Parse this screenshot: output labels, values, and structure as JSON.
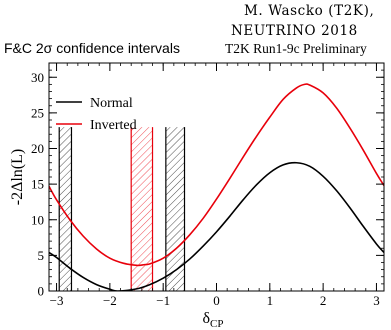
{
  "credit_line1": "M. Wascko (T2K),",
  "credit_line2": "NEUTRINO 2018",
  "chart_data": {
    "type": "line",
    "title": "F&C 2σ confidence intervals",
    "subtitle": "T2K Run1-9c Preliminary",
    "xlabel": "δ",
    "xlabel_sub": "CP",
    "ylabel": "-2Δln(L)",
    "xlim": [
      -3.14159,
      3.14159
    ],
    "ylim": [
      0,
      32
    ],
    "xticks": [
      -3,
      -2,
      -1,
      0,
      1,
      2,
      3
    ],
    "yticks": [
      0,
      5,
      10,
      15,
      20,
      25,
      30
    ],
    "grid": false,
    "legend_position": "top-left",
    "series": [
      {
        "name": "Normal",
        "color": "#000000",
        "x": [
          -3.14159,
          -3.0,
          -2.75,
          -2.5,
          -2.25,
          -2.0,
          -1.85,
          -1.5,
          -1.25,
          -1.0,
          -0.75,
          -0.5,
          -0.25,
          0.0,
          0.25,
          0.5,
          0.75,
          1.0,
          1.25,
          1.5,
          1.75,
          2.0,
          2.25,
          2.5,
          2.75,
          3.0,
          3.14159
        ],
        "y": [
          5.4,
          4.7,
          3.2,
          1.9,
          0.9,
          0.25,
          0.0,
          0.3,
          0.9,
          1.8,
          3.0,
          4.5,
          6.3,
          8.3,
          10.5,
          12.8,
          14.9,
          16.6,
          17.7,
          18.0,
          17.5,
          16.1,
          14.1,
          11.7,
          9.1,
          6.6,
          5.4
        ]
      },
      {
        "name": "Inverted",
        "color": "#e8000b",
        "x": [
          -3.14159,
          -3.0,
          -2.75,
          -2.5,
          -2.25,
          -2.0,
          -1.75,
          -1.5,
          -1.35,
          -1.25,
          -1.0,
          -0.75,
          -0.5,
          -0.25,
          0.0,
          0.25,
          0.5,
          0.75,
          1.0,
          1.25,
          1.5,
          1.65,
          1.75,
          2.0,
          2.25,
          2.5,
          2.75,
          3.0,
          3.14159
        ],
        "y": [
          14.7,
          12.8,
          10.0,
          7.7,
          5.9,
          4.6,
          3.9,
          3.6,
          3.7,
          3.8,
          4.6,
          6.0,
          7.9,
          10.2,
          12.9,
          15.8,
          18.8,
          21.7,
          24.4,
          26.9,
          28.5,
          29.0,
          28.9,
          27.8,
          25.7,
          22.9,
          19.8,
          16.5,
          14.8
        ]
      }
    ],
    "intervals": [
      {
        "series": "Normal",
        "color": "#000000",
        "bands": [
          [
            -2.95,
            -2.72
          ],
          [
            -0.95,
            -0.6
          ]
        ]
      },
      {
        "series": "Inverted",
        "color": "#e8000b",
        "bands": [
          [
            -1.6,
            -1.2
          ]
        ]
      }
    ],
    "interval_line_top": 23
  }
}
